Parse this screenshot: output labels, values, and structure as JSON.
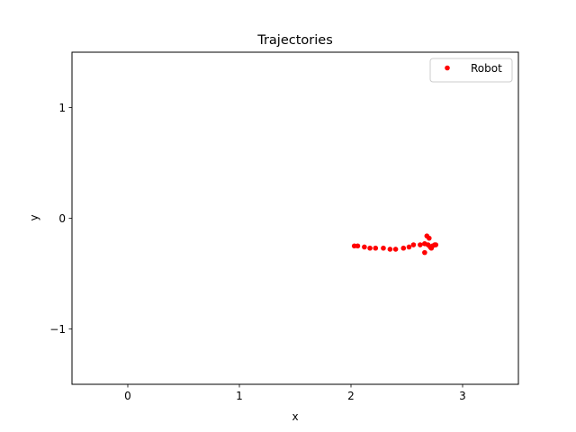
{
  "chart_data": {
    "type": "scatter",
    "title": "Trajectories",
    "xlabel": "x",
    "ylabel": "y",
    "xlim": [
      -0.5,
      3.5
    ],
    "ylim": [
      -1.5,
      1.5
    ],
    "xticks": [
      0,
      1,
      2,
      3
    ],
    "xtick_labels": [
      "0",
      "1",
      "2",
      "3"
    ],
    "yticks": [
      -1,
      0,
      1
    ],
    "ytick_labels": [
      "−1",
      "0",
      "1"
    ],
    "grid": false,
    "legend_position": "top-right",
    "series": [
      {
        "name": "Robot",
        "color": "#ff0000",
        "marker": "circle",
        "x": [
          2.03,
          2.06,
          2.12,
          2.17,
          2.22,
          2.29,
          2.35,
          2.4,
          2.47,
          2.52,
          2.56,
          2.62,
          2.66,
          2.69,
          2.71,
          2.72,
          2.73,
          2.75,
          2.76,
          2.7,
          2.68,
          2.66
        ],
        "y": [
          -0.25,
          -0.25,
          -0.26,
          -0.27,
          -0.27,
          -0.27,
          -0.28,
          -0.28,
          -0.27,
          -0.26,
          -0.24,
          -0.24,
          -0.23,
          -0.24,
          -0.26,
          -0.27,
          -0.25,
          -0.24,
          -0.24,
          -0.18,
          -0.16,
          -0.31
        ]
      }
    ]
  }
}
